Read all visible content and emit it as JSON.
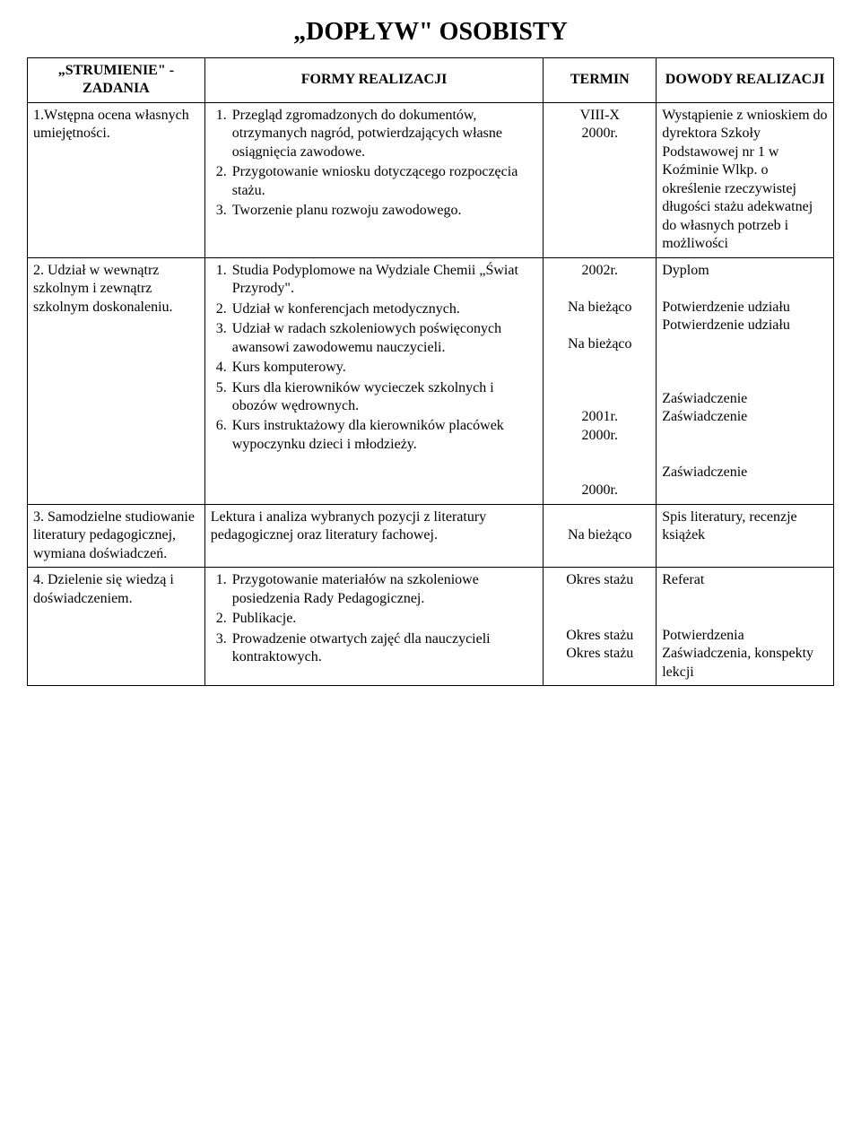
{
  "page_title": "„DOPŁYW\" OSOBISTY",
  "headers": {
    "col1": "„STRUMIENIE\" - ZADANIA",
    "col2": "FORMY REALIZACJI",
    "col3": "TERMIN",
    "col4": "DOWODY REALIZACJI"
  },
  "rows": [
    {
      "zadanie": "1.Wstępna ocena własnych umiejętności.",
      "formy": [
        "Przegląd zgromadzonych do dokumentów, otrzymanych nagród, potwierdzających własne osiągnięcia zawodowe.",
        "Przygotowanie wniosku dotyczącego rozpoczęcia stażu.",
        "Tworzenie planu rozwoju zawodowego."
      ],
      "termin": [
        "VIII-X",
        "2000r."
      ],
      "dowody": "Wystąpienie z wnioskiem do dyrektora Szkoły Podstawowej nr 1 w Koźminie Wlkp. o określenie rzeczywistej długości stażu adekwatnej do własnych potrzeb i możliwości"
    },
    {
      "zadanie": "2. Udział w wewnątrz szkolnym i zewnątrz szkolnym doskonaleniu.",
      "formy": [
        "Studia Podyplomowe na Wydziale Chemii „Świat Przyrody\".",
        "Udział w konferencjach metodycznych.",
        "Udział w radach szkoleniowych poświęconych awansowi zawodowemu nauczycieli.",
        "Kurs komputerowy.",
        "Kurs dla kierowników wycieczek szkolnych i obozów wędrownych.",
        "Kurs instruktażowy dla kierowników placówek wypoczynku dzieci i młodzieży."
      ],
      "termin": [
        "2002r.",
        "",
        "Na bieżąco",
        "",
        "Na bieżąco",
        "",
        "",
        "",
        "2001r.",
        "2000r.",
        "",
        "",
        "2000r."
      ],
      "dowody": [
        "Dyplom",
        "",
        "Potwierdzenie udziału",
        "Potwierdzenie udziału",
        "",
        "",
        "",
        "Zaświadczenie",
        "Zaświadczenie",
        "",
        "",
        "Zaświadczenie"
      ]
    },
    {
      "zadanie": "3. Samodzielne studiowanie literatury pedagogicznej, wymiana doświadczeń.",
      "formy_plain": "Lektura i analiza wybranych pozycji z literatury pedagogicznej oraz literatury fachowej.",
      "termin": [
        "",
        "Na bieżąco"
      ],
      "dowody": "Spis literatury, recenzje książek"
    },
    {
      "zadanie": "4. Dzielenie się wiedzą i doświadczeniem.",
      "formy": [
        "Przygotowanie materiałów na szkoleniowe posiedzenia Rady Pedagogicznej.",
        "Publikacje.",
        "Prowadzenie otwartych zajęć dla nauczycieli kontraktowych."
      ],
      "termin": [
        "Okres stażu",
        "",
        "",
        "Okres stażu",
        "Okres stażu"
      ],
      "dowody": [
        "Referat",
        "",
        "",
        "Potwierdzenia",
        "Zaświadczenia, konspekty lekcji"
      ]
    }
  ]
}
